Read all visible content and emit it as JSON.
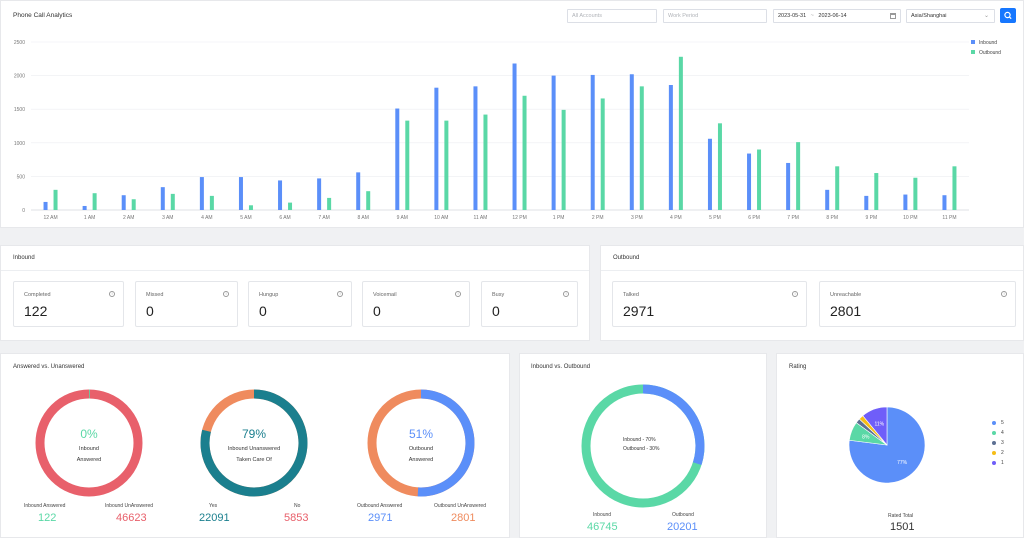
{
  "header": {
    "title": "Phone Call Analytics",
    "accounts_placeholder": "All Accounts",
    "work_period_placeholder": "Work Period",
    "date_start": "2023-05-31",
    "date_sep": "~",
    "date_end": "2023-06-14",
    "timezone": "Asia/Shanghai"
  },
  "colors": {
    "inbound": "#5b8ff9",
    "outbound": "#5ad8a6",
    "red": "#e8606b",
    "teal": "#1b7f8e",
    "orange": "#ef8b5e",
    "accent": "#1677ff"
  },
  "chart_data": {
    "type": "bar",
    "categories": [
      "12 AM",
      "1 AM",
      "2 AM",
      "3 AM",
      "4 AM",
      "5 AM",
      "6 AM",
      "7 AM",
      "8 AM",
      "9 AM",
      "10 AM",
      "11 AM",
      "12 PM",
      "1 PM",
      "2 PM",
      "3 PM",
      "4 PM",
      "5 PM",
      "6 PM",
      "7 PM",
      "8 PM",
      "9 PM",
      "10 PM",
      "11 PM"
    ],
    "series": [
      {
        "name": "Inbound",
        "values": [
          120,
          60,
          220,
          340,
          490,
          490,
          440,
          470,
          560,
          1510,
          1820,
          1840,
          2180,
          2000,
          2010,
          2020,
          1860,
          1060,
          840,
          700,
          300,
          210,
          230,
          220
        ]
      },
      {
        "name": "Outbound",
        "values": [
          300,
          250,
          160,
          240,
          210,
          70,
          110,
          180,
          280,
          1330,
          1330,
          1420,
          1700,
          1490,
          1660,
          1840,
          2280,
          1290,
          900,
          1010,
          650,
          550,
          480,
          650
        ]
      }
    ],
    "ylim": [
      0,
      2500
    ],
    "yticks": [
      0,
      500,
      1000,
      1500,
      2000,
      2500
    ],
    "legend_position": "top-right",
    "grid": true
  },
  "inbound": {
    "title": "Inbound",
    "cards": [
      {
        "label": "Completed",
        "value": "122"
      },
      {
        "label": "Missed",
        "value": "0"
      },
      {
        "label": "Hungup",
        "value": "0"
      },
      {
        "label": "Voicemail",
        "value": "0"
      },
      {
        "label": "Busy",
        "value": "0"
      }
    ]
  },
  "outbound": {
    "title": "Outbound",
    "cards": [
      {
        "label": "Talked",
        "value": "2971"
      },
      {
        "label": "Unreachable",
        "value": "2801"
      }
    ]
  },
  "answered": {
    "title": "Answered vs. Unanswered",
    "donuts": [
      {
        "pct": "0%",
        "line1": "Inbound",
        "line2": "Answered",
        "fraction": 0.0026,
        "left_label": "Inbound Answered",
        "left_value": "122",
        "right_label": "Inbound UnAnswered",
        "right_value": "46623"
      },
      {
        "pct": "79%",
        "line1": "Inbound Unanswered",
        "line2": "Taken Care Of",
        "fraction": 0.79,
        "left_label": "Yes",
        "left_value": "22091",
        "right_label": "No",
        "right_value": "5853"
      },
      {
        "pct": "51%",
        "line1": "Outbound",
        "line2": "Answered",
        "fraction": 0.51,
        "left_label": "Outbound Answered",
        "left_value": "2971",
        "right_label": "Outbound UnAnswered",
        "right_value": "2801"
      }
    ]
  },
  "inout": {
    "title": "Inbound vs. Outbound",
    "inbound_text": "Inbound - 70%",
    "outbound_text": "Outbound - 30%",
    "inbound_fraction": 0.7,
    "left_label": "Inbound",
    "left_value": "46745",
    "right_label": "Outbound",
    "right_value": "20201"
  },
  "rating": {
    "title": "Rating",
    "legend": [
      "5",
      "4",
      "3",
      "2",
      "1"
    ],
    "slices": [
      {
        "label": "5",
        "pct": 0.77,
        "text": "77%",
        "color": "#5b8ff9"
      },
      {
        "label": "4",
        "pct": 0.08,
        "text": "8%",
        "color": "#5ad8a6"
      },
      {
        "label": "3",
        "pct": 0.02,
        "text": "",
        "color": "#5d7092"
      },
      {
        "label": "2",
        "pct": 0.02,
        "text": "",
        "color": "#f6bd16"
      },
      {
        "label": "1",
        "pct": 0.11,
        "text": "11%",
        "color": "#6f5ef9"
      }
    ],
    "total_label": "Rated Total",
    "total_value": "1501"
  }
}
